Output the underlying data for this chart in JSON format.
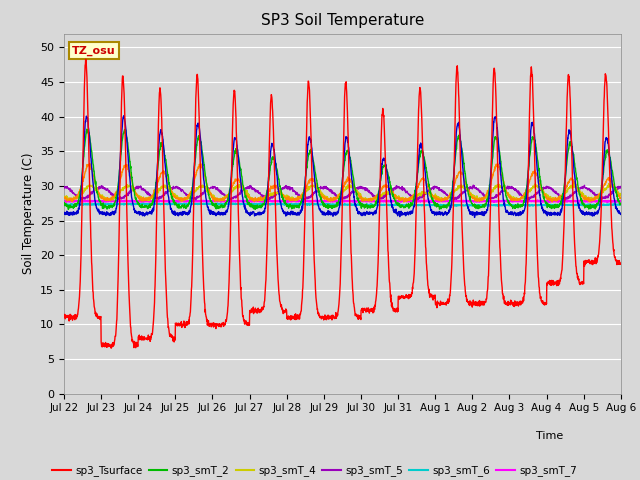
{
  "title": "SP3 Soil Temperature",
  "ylabel": "Soil Temperature (C)",
  "xlabel": "Time",
  "tz_label": "TZ_osu",
  "ylim": [
    0,
    52
  ],
  "yticks": [
    0,
    5,
    10,
    15,
    20,
    25,
    30,
    35,
    40,
    45,
    50
  ],
  "bg_color": "#d8d8d8",
  "plot_bg_color": "#d8d8d8",
  "series_colors": {
    "sp3_Tsurface": "#ff0000",
    "sp3_smT_1": "#0000cc",
    "sp3_smT_2": "#00bb00",
    "sp3_smT_3": "#ff8800",
    "sp3_smT_4": "#cccc00",
    "sp3_smT_5": "#9900bb",
    "sp3_smT_6": "#00cccc",
    "sp3_smT_7": "#ff00ff"
  },
  "tick_labels": [
    "Jul 22",
    "Jul 23",
    "Jul 24",
    "Jul 25",
    "Jul 26",
    "Jul 27",
    "Jul 28",
    "Jul 29",
    "Jul 30",
    "Jul 31",
    "Aug 1",
    "Aug 2",
    "Aug 3",
    "Aug 4",
    "Aug 5",
    "Aug 6"
  ],
  "n_days": 15,
  "pts_per_day": 144
}
